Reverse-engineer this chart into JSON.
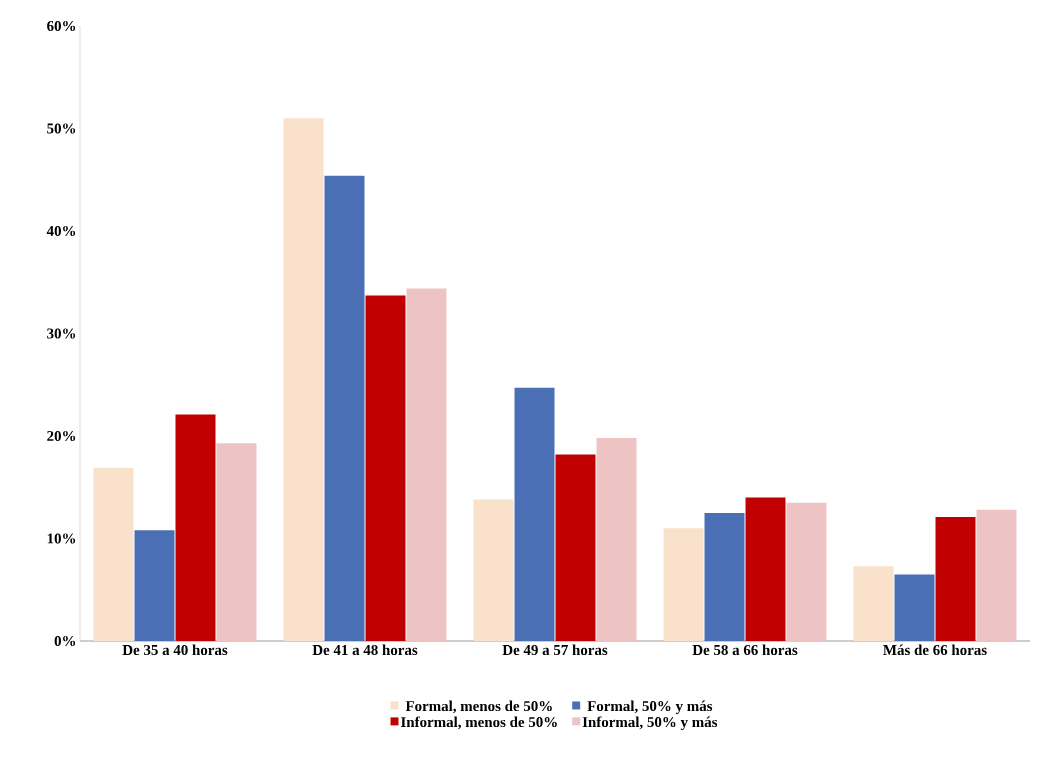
{
  "chart_data": {
    "type": "bar",
    "categories": [
      "De 35 a 40 horas",
      "De 41 a 48 horas",
      "De 49 a 57 horas",
      "De 58 a 66 horas",
      "Más de 66 horas"
    ],
    "series": [
      {
        "name": "Formal, menos de 50%",
        "color": "#f9e1cb",
        "values": [
          16.9,
          51.0,
          13.8,
          11.0,
          7.3
        ]
      },
      {
        "name": "Formal, 50% y más",
        "color": "#4a6fb5",
        "values": [
          10.8,
          45.4,
          24.7,
          12.5,
          6.5
        ]
      },
      {
        "name": "Informal, menos de 50%",
        "color": "#c00000",
        "values": [
          22.1,
          33.7,
          18.2,
          14.0,
          12.1
        ]
      },
      {
        "name": "Informal, 50% y más",
        "color": "#eec3c3",
        "values": [
          19.3,
          34.4,
          19.8,
          13.5,
          12.8
        ]
      }
    ],
    "ylim": [
      0,
      60
    ],
    "yticks": [
      {
        "value": 0,
        "label": "0%"
      },
      {
        "value": 10,
        "label": "10%"
      },
      {
        "value": 20,
        "label": "20%"
      },
      {
        "value": 30,
        "label": "30%"
      },
      {
        "value": 40,
        "label": "40%"
      },
      {
        "value": 50,
        "label": "50%"
      },
      {
        "value": 60,
        "label": "60%"
      }
    ],
    "grid": false,
    "legend": "bottom"
  }
}
